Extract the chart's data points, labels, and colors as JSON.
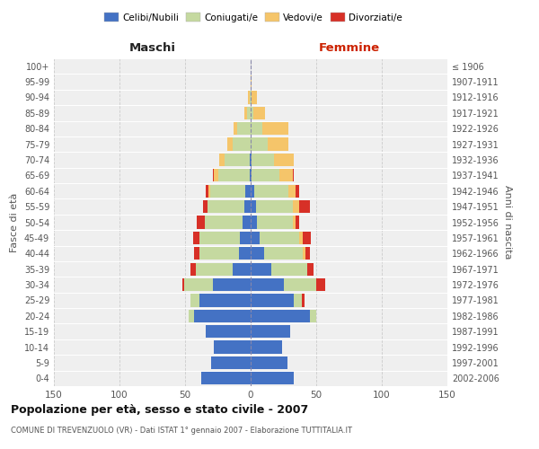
{
  "age_groups": [
    "0-4",
    "5-9",
    "10-14",
    "15-19",
    "20-24",
    "25-29",
    "30-34",
    "35-39",
    "40-44",
    "45-49",
    "50-54",
    "55-59",
    "60-64",
    "65-69",
    "70-74",
    "75-79",
    "80-84",
    "85-89",
    "90-94",
    "95-99",
    "100+"
  ],
  "birth_years": [
    "2002-2006",
    "1997-2001",
    "1992-1996",
    "1987-1991",
    "1982-1986",
    "1977-1981",
    "1972-1976",
    "1967-1971",
    "1962-1966",
    "1957-1961",
    "1952-1956",
    "1947-1951",
    "1942-1946",
    "1937-1941",
    "1932-1936",
    "1927-1931",
    "1922-1926",
    "1917-1921",
    "1912-1916",
    "1907-1911",
    "≤ 1906"
  ],
  "colors": {
    "celibi": "#4472c4",
    "coniugati": "#c5d9a0",
    "vedovi": "#f5c56a",
    "divorziati": "#d73027"
  },
  "males": {
    "celibi": [
      38,
      30,
      28,
      34,
      43,
      39,
      29,
      14,
      9,
      8,
      6,
      5,
      4,
      1,
      1,
      0,
      0,
      0,
      0,
      0,
      0
    ],
    "coniugati": [
      0,
      0,
      0,
      0,
      4,
      7,
      22,
      28,
      30,
      31,
      29,
      28,
      27,
      24,
      19,
      14,
      10,
      3,
      1,
      0,
      0
    ],
    "vedovi": [
      0,
      0,
      0,
      0,
      0,
      0,
      0,
      0,
      0,
      0,
      0,
      0,
      1,
      3,
      4,
      4,
      3,
      2,
      1,
      0,
      0
    ],
    "divorziati": [
      0,
      0,
      0,
      0,
      0,
      0,
      1,
      4,
      4,
      5,
      6,
      3,
      2,
      1,
      0,
      0,
      0,
      0,
      0,
      0,
      0
    ]
  },
  "females": {
    "nubili": [
      33,
      28,
      24,
      30,
      45,
      33,
      25,
      16,
      10,
      7,
      5,
      4,
      3,
      1,
      1,
      0,
      0,
      0,
      0,
      0,
      0
    ],
    "coniugate": [
      0,
      0,
      0,
      0,
      5,
      6,
      25,
      27,
      30,
      30,
      27,
      28,
      26,
      21,
      17,
      13,
      9,
      2,
      1,
      0,
      0
    ],
    "vedove": [
      0,
      0,
      0,
      0,
      0,
      0,
      0,
      0,
      2,
      3,
      2,
      5,
      5,
      10,
      15,
      16,
      20,
      9,
      4,
      1,
      0
    ],
    "divorziate": [
      0,
      0,
      0,
      0,
      0,
      2,
      7,
      5,
      3,
      6,
      3,
      8,
      3,
      1,
      0,
      0,
      0,
      0,
      0,
      0,
      0
    ]
  },
  "xlim": 150,
  "title": "Popolazione per età, sesso e stato civile - 2007",
  "subtitle": "COMUNE DI TREVENZUOLO (VR) - Dati ISTAT 1° gennaio 2007 - Elaborazione TUTTITALIA.IT",
  "ylabel_left": "Fasce di età",
  "ylabel_right": "Anni di nascita",
  "header_left": "Maschi",
  "header_right": "Femmine",
  "legend_labels": [
    "Celibi/Nubili",
    "Coniugati/e",
    "Vedovi/e",
    "Divorziati/e"
  ],
  "background_color": "#ffffff",
  "bar_height": 0.82
}
